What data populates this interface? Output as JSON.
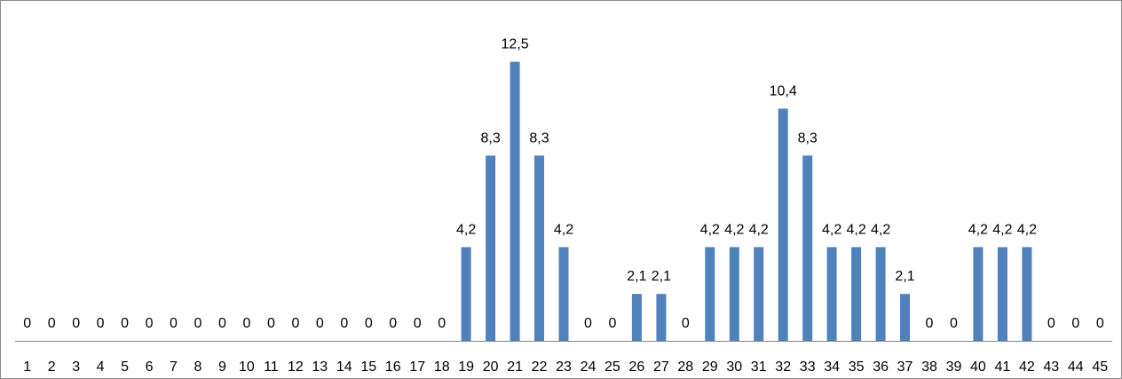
{
  "chart_data": {
    "type": "bar",
    "title": "",
    "xlabel": "",
    "ylabel": "",
    "ylim": [
      0,
      14
    ],
    "grid": false,
    "legend": "none",
    "categories": [
      "1",
      "2",
      "3",
      "4",
      "5",
      "6",
      "7",
      "8",
      "9",
      "10",
      "11",
      "12",
      "13",
      "14",
      "15",
      "16",
      "17",
      "18",
      "19",
      "20",
      "21",
      "22",
      "23",
      "24",
      "25",
      "26",
      "27",
      "28",
      "29",
      "30",
      "31",
      "32",
      "33",
      "34",
      "35",
      "36",
      "37",
      "38",
      "39",
      "40",
      "41",
      "42",
      "43",
      "44",
      "45"
    ],
    "values": [
      0,
      0,
      0,
      0,
      0,
      0,
      0,
      0,
      0,
      0,
      0,
      0,
      0,
      0,
      0,
      0,
      0,
      0,
      4.2,
      8.3,
      12.5,
      8.3,
      4.2,
      0,
      0,
      2.1,
      2.1,
      0,
      4.2,
      4.2,
      4.2,
      10.4,
      8.3,
      4.2,
      4.2,
      4.2,
      2.1,
      0,
      0,
      4.2,
      4.2,
      4.2,
      0,
      0,
      0
    ],
    "data_labels": [
      "0",
      "0",
      "0",
      "0",
      "0",
      "0",
      "0",
      "0",
      "0",
      "0",
      "0",
      "0",
      "0",
      "0",
      "0",
      "0",
      "0",
      "0",
      "4,2",
      "8,3",
      "12,5",
      "8,3",
      "4,2",
      "0",
      "0",
      "2,1",
      "2,1",
      "0",
      "4,2",
      "4,2",
      "4,2",
      "10,4",
      "8,3",
      "4,2",
      "4,2",
      "4,2",
      "2,1",
      "0",
      "0",
      "4,2",
      "4,2",
      "4,2",
      "0",
      "0",
      "0"
    ],
    "bar_color": "#4f81bd",
    "axis_color": "#868686"
  }
}
